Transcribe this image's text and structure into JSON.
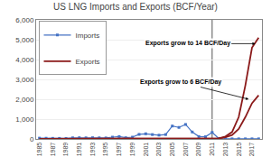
{
  "chart_data": {
    "type": "line",
    "title": "US LNG Imports and Exports (BCF/Year)",
    "x": [
      1985,
      1986,
      1987,
      1988,
      1989,
      1990,
      1991,
      1992,
      1993,
      1994,
      1995,
      1996,
      1997,
      1998,
      1999,
      2000,
      2001,
      2002,
      2003,
      2004,
      2005,
      2006,
      2007,
      2008,
      2009,
      2010,
      2011,
      2012,
      2013,
      2014,
      2015,
      2016,
      2017,
      2018
    ],
    "series": [
      {
        "name": "Imports",
        "color": "#4472C4",
        "marker": "square",
        "line_style": "solid",
        "values": [
          40,
          35,
          30,
          28,
          25,
          55,
          60,
          55,
          60,
          55,
          50,
          90,
          120,
          60,
          90,
          230,
          260,
          220,
          190,
          220,
          650,
          580,
          730,
          350,
          120,
          110,
          330,
          20,
          10,
          5,
          5,
          5,
          5,
          5
        ]
      },
      {
        "name": "Exports",
        "color": "#8B1A1A",
        "marker": "none",
        "line_style": "solid",
        "values": [
          0,
          0,
          0,
          0,
          0,
          0,
          0,
          0,
          0,
          0,
          0,
          0,
          0,
          0,
          0,
          0,
          0,
          0,
          0,
          0,
          0,
          0,
          0,
          0,
          0,
          0,
          5,
          30,
          120,
          350,
          1100,
          2700,
          4600,
          5100
        ]
      },
      {
        "name": "Exports",
        "color": "#8B1A1A",
        "marker": "none",
        "line_style": "solid",
        "values": [
          0,
          0,
          0,
          0,
          0,
          0,
          0,
          0,
          0,
          0,
          0,
          0,
          0,
          0,
          0,
          0,
          0,
          0,
          0,
          0,
          0,
          0,
          0,
          0,
          0,
          0,
          5,
          25,
          80,
          200,
          500,
          1100,
          1800,
          2200
        ]
      }
    ],
    "xlim": [
      1984.5,
      2018.5
    ],
    "xticks": [
      1985,
      1987,
      1989,
      1991,
      1993,
      1995,
      1997,
      1999,
      2001,
      2003,
      2005,
      2007,
      2009,
      2011,
      2013,
      2015,
      2017
    ],
    "ylim": [
      0,
      6000
    ],
    "yticks": [
      0,
      {
        "value": 1000,
        "label": "1,000"
      },
      {
        "value": 2000,
        "label": "2,000"
      },
      {
        "value": 3000,
        "label": "3,000"
      },
      {
        "value": 4000,
        "label": "4,000"
      },
      {
        "value": 5000,
        "label": "5,000"
      },
      {
        "value": 6000,
        "label": "6,000"
      }
    ],
    "grid": "y",
    "legend": "upper left",
    "vline": 2011,
    "annotations": [
      {
        "text": "Exports grow to 14 BCF/Day",
        "x": 2017.5,
        "y": 4800
      },
      {
        "text": "Exports grow to 6 BCF/Day",
        "x": 2016.5,
        "y": 2000
      }
    ]
  }
}
